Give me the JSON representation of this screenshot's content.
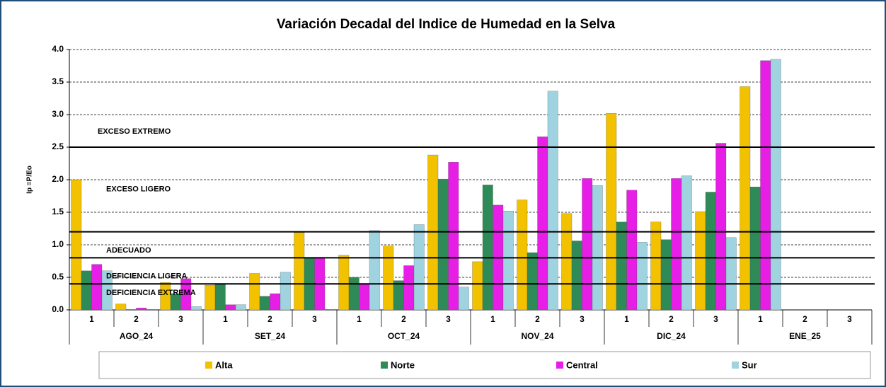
{
  "chart_data": {
    "type": "bar",
    "title": "Variación Decadal del Indice de Humedad en la Selva",
    "y_label": "Ip =P/Eo",
    "categories": [
      "1",
      "2",
      "3",
      "1",
      "2",
      "3",
      "1",
      "2",
      "3",
      "1",
      "2",
      "3",
      "1",
      "2",
      "3",
      "1",
      "2",
      "3"
    ],
    "groups": [
      "AGO_24",
      "SET_24",
      "OCT_24",
      "NOV_24",
      "DIC_24",
      "ENE_25"
    ],
    "series": [
      {
        "name": "Alta",
        "color": "#f2c200",
        "values": [
          2.0,
          0.09,
          0.42,
          0.38,
          0.56,
          1.19,
          0.84,
          0.98,
          2.38,
          0.74,
          1.69,
          1.48,
          3.02,
          1.35,
          1.51,
          3.43,
          null,
          null
        ]
      },
      {
        "name": "Norte",
        "color": "#2e8b57",
        "values": [
          0.6,
          0.0,
          0.25,
          0.4,
          0.21,
          0.8,
          0.5,
          0.45,
          2.01,
          1.92,
          0.88,
          1.06,
          1.35,
          1.08,
          1.81,
          1.89,
          null,
          null
        ]
      },
      {
        "name": "Central",
        "color": "#e61ee6",
        "values": [
          0.7,
          0.03,
          0.48,
          0.08,
          0.25,
          0.8,
          0.4,
          0.68,
          2.27,
          1.61,
          2.66,
          2.02,
          1.84,
          2.02,
          2.56,
          3.83,
          null,
          null
        ]
      },
      {
        "name": "Sur",
        "color": "#9fd3e0",
        "values": [
          0.6,
          0.0,
          0.05,
          0.08,
          0.58,
          0.0,
          1.22,
          1.31,
          0.35,
          1.52,
          3.36,
          1.91,
          1.04,
          2.06,
          1.11,
          3.85,
          null,
          null
        ]
      }
    ],
    "thresholds": [
      0.4,
      0.8,
      1.2,
      2.5
    ],
    "zones": [
      "DEFICIENCIA EXTREMA",
      "DEFICIENCIA LIGERA",
      "ADECUADO",
      "EXCESO LIGERO",
      "EXCESO EXTREMO"
    ],
    "ylim": [
      0,
      4
    ],
    "yticks": [
      {
        "value": 0,
        "label": "0.0"
      },
      0.5,
      {
        "value": 1,
        "label": "1.0"
      },
      1.5,
      {
        "value": 2,
        "label": "2.0"
      },
      2.5,
      {
        "value": 3,
        "label": "3.0"
      },
      3.5,
      {
        "value": 4,
        "label": "4.0"
      }
    ],
    "grid": true
  }
}
